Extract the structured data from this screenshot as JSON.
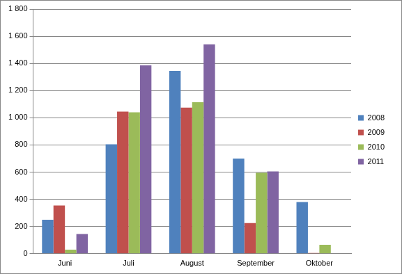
{
  "chart_data": {
    "type": "bar",
    "categories": [
      "Juni",
      "Juli",
      "August",
      "September",
      "Oktober"
    ],
    "series": [
      {
        "name": "2008",
        "color": "#4f81bd",
        "values": [
          250,
          805,
          1345,
          700,
          380
        ]
      },
      {
        "name": "2009",
        "color": "#c0504d",
        "values": [
          355,
          1045,
          1075,
          225,
          5
        ]
      },
      {
        "name": "2010",
        "color": "#9bbb59",
        "values": [
          30,
          1040,
          1115,
          595,
          65
        ]
      },
      {
        "name": "2011",
        "color": "#8064a2",
        "values": [
          145,
          1385,
          1540,
          605,
          null
        ]
      }
    ],
    "ylim": [
      0,
      1800
    ],
    "yticks": [
      0,
      200,
      400,
      600,
      800,
      {
        "value": 1000,
        "label": "1 000"
      },
      {
        "value": 1200,
        "label": "1 200"
      },
      {
        "value": 1400,
        "label": "1 400"
      },
      {
        "value": 1600,
        "label": "1 600"
      },
      {
        "value": 1800,
        "label": "1 800"
      }
    ],
    "grid": true,
    "legend": "right"
  }
}
